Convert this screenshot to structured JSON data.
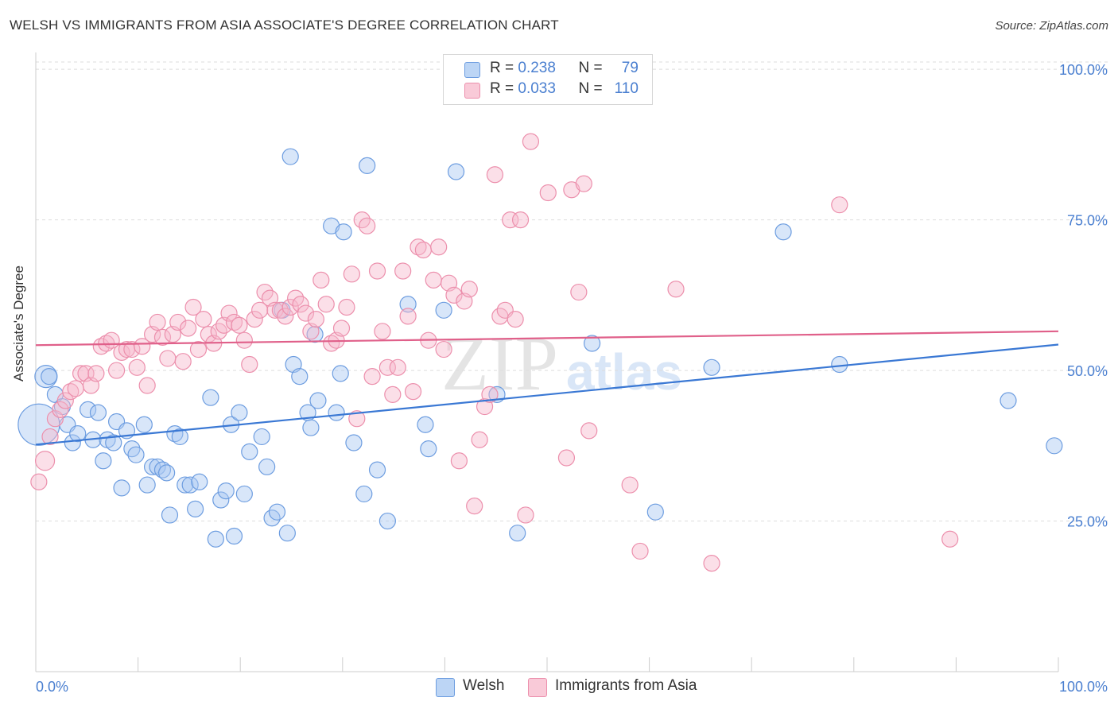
{
  "title": "WELSH VS IMMIGRANTS FROM ASIA ASSOCIATE'S DEGREE CORRELATION CHART",
  "source": "Source: ZipAtlas.com",
  "watermark": {
    "zip": "ZIP",
    "atlas": "atlas"
  },
  "colors": {
    "welsh_fill": "#a9c8f2",
    "welsh_stroke": "#6d9de0",
    "welsh_line": "#3a78d4",
    "asia_fill": "#f7b9cb",
    "asia_stroke": "#ec8fac",
    "asia_line": "#e0608a",
    "grid": "#dddddd",
    "tick_label": "#4a7fd0"
  },
  "legend": {
    "r_label": "R =",
    "n_label": "N =",
    "welsh": {
      "r": "0.238",
      "n": "79"
    },
    "asia": {
      "r": "0.033",
      "n": "110"
    }
  },
  "bottom_legend": {
    "welsh": "Welsh",
    "asia": "Immigrants from Asia"
  },
  "chart_data": {
    "type": "scatter",
    "title": "WELSH VS IMMIGRANTS FROM ASIA ASSOCIATE'S DEGREE CORRELATION CHART",
    "xlabel": "",
    "ylabel": "Associate's Degree",
    "xlim": [
      0,
      100
    ],
    "ylim": [
      0,
      102
    ],
    "x_tick_labels": [
      "0.0%",
      "100.0%"
    ],
    "y_ticks": [
      25,
      50,
      75,
      100
    ],
    "y_tick_labels": [
      "25.0%",
      "50.0%",
      "75.0%",
      "100.0%"
    ],
    "grid": true,
    "legend_position": "top-center",
    "series": [
      {
        "name": "Welsh",
        "r": 0.238,
        "n": 79,
        "trend": [
          [
            0,
            37.7
          ],
          [
            100,
            54.3
          ]
        ],
        "points": [
          [
            0.3,
            41,
            26
          ],
          [
            1.0,
            49,
            14
          ],
          [
            1.3,
            49,
            10
          ],
          [
            1.9,
            46,
            10
          ],
          [
            2.6,
            44,
            10
          ],
          [
            3.1,
            41,
            10
          ],
          [
            3.6,
            38,
            10
          ],
          [
            4.1,
            39.5,
            10
          ],
          [
            5.1,
            43.5,
            10
          ],
          [
            5.6,
            38.5,
            10
          ],
          [
            6.1,
            43,
            10
          ],
          [
            6.6,
            35,
            10
          ],
          [
            7.0,
            38.5,
            10
          ],
          [
            7.6,
            38,
            10
          ],
          [
            7.9,
            41.5,
            10
          ],
          [
            8.4,
            30.5,
            10
          ],
          [
            8.9,
            40,
            10
          ],
          [
            9.4,
            37,
            10
          ],
          [
            9.8,
            36,
            10
          ],
          [
            10.6,
            41,
            10
          ],
          [
            10.9,
            31,
            10
          ],
          [
            11.4,
            34,
            10
          ],
          [
            11.9,
            34,
            10
          ],
          [
            12.4,
            33.5,
            10
          ],
          [
            12.8,
            33,
            10
          ],
          [
            13.1,
            26,
            10
          ],
          [
            13.6,
            39.5,
            10
          ],
          [
            14.1,
            39,
            10
          ],
          [
            14.6,
            31,
            10
          ],
          [
            15.1,
            31,
            10
          ],
          [
            15.6,
            27,
            10
          ],
          [
            16.0,
            31.5,
            10
          ],
          [
            17.1,
            45.5,
            10
          ],
          [
            17.6,
            22,
            10
          ],
          [
            18.1,
            28.5,
            10
          ],
          [
            18.6,
            30,
            10
          ],
          [
            19.1,
            41,
            10
          ],
          [
            19.4,
            22.5,
            10
          ],
          [
            19.9,
            43,
            10
          ],
          [
            20.4,
            29.5,
            10
          ],
          [
            20.9,
            36.5,
            10
          ],
          [
            22.1,
            39,
            10
          ],
          [
            22.6,
            34,
            10
          ],
          [
            23.1,
            25.5,
            10
          ],
          [
            23.6,
            26.5,
            10
          ],
          [
            24.1,
            60,
            10
          ],
          [
            24.6,
            23,
            10
          ],
          [
            24.9,
            85.5,
            10
          ],
          [
            25.2,
            51,
            10
          ],
          [
            25.8,
            49,
            10
          ],
          [
            26.6,
            43,
            10
          ],
          [
            26.9,
            40.5,
            10
          ],
          [
            27.3,
            56,
            10
          ],
          [
            27.6,
            45,
            10
          ],
          [
            28.9,
            74,
            10
          ],
          [
            29.4,
            43,
            10
          ],
          [
            29.8,
            49.5,
            10
          ],
          [
            30.1,
            73,
            10
          ],
          [
            31.1,
            38,
            10
          ],
          [
            32.1,
            29.5,
            10
          ],
          [
            32.4,
            84,
            10
          ],
          [
            33.4,
            33.5,
            10
          ],
          [
            34.4,
            25,
            10
          ],
          [
            36.4,
            61,
            10
          ],
          [
            38.1,
            41,
            10
          ],
          [
            38.4,
            37,
            10
          ],
          [
            39.9,
            60,
            10
          ],
          [
            41.1,
            83,
            10
          ],
          [
            45.1,
            46,
            10
          ],
          [
            47.1,
            23,
            10
          ],
          [
            54.4,
            54.5,
            10
          ],
          [
            60.6,
            26.5,
            10
          ],
          [
            66.1,
            50.5,
            10
          ],
          [
            73.1,
            73,
            10
          ],
          [
            78.6,
            51,
            10
          ],
          [
            95.1,
            45,
            10
          ],
          [
            99.6,
            37.5,
            10
          ]
        ]
      },
      {
        "name": "Immigrants from Asia",
        "r": 0.033,
        "n": 110,
        "trend": [
          [
            0,
            54.2
          ],
          [
            100,
            56.5
          ]
        ],
        "points": [
          [
            0.3,
            31.5,
            10
          ],
          [
            0.9,
            35,
            12
          ],
          [
            1.4,
            39,
            10
          ],
          [
            1.9,
            42,
            10
          ],
          [
            2.4,
            43.5,
            10
          ],
          [
            2.9,
            45,
            10
          ],
          [
            3.4,
            46.5,
            10
          ],
          [
            3.9,
            47,
            10
          ],
          [
            4.4,
            49.5,
            10
          ],
          [
            4.9,
            49.5,
            10
          ],
          [
            5.4,
            47.5,
            10
          ],
          [
            5.9,
            49.5,
            10
          ],
          [
            6.4,
            54,
            10
          ],
          [
            6.9,
            54.5,
            10
          ],
          [
            7.4,
            55,
            10
          ],
          [
            7.9,
            50,
            10
          ],
          [
            8.4,
            53,
            10
          ],
          [
            8.9,
            53.5,
            10
          ],
          [
            9.4,
            53.5,
            10
          ],
          [
            9.9,
            50.5,
            10
          ],
          [
            10.4,
            54,
            10
          ],
          [
            10.9,
            47.5,
            10
          ],
          [
            11.4,
            56,
            10
          ],
          [
            11.9,
            58,
            10
          ],
          [
            12.4,
            55.5,
            10
          ],
          [
            12.9,
            52,
            10
          ],
          [
            13.4,
            56,
            10
          ],
          [
            13.9,
            58,
            10
          ],
          [
            14.4,
            51.5,
            10
          ],
          [
            14.9,
            57,
            10
          ],
          [
            15.4,
            60.5,
            10
          ],
          [
            15.9,
            53.5,
            10
          ],
          [
            16.4,
            58.5,
            10
          ],
          [
            16.9,
            56,
            10
          ],
          [
            17.4,
            54.5,
            10
          ],
          [
            17.9,
            56.5,
            10
          ],
          [
            18.4,
            57.5,
            10
          ],
          [
            18.9,
            59.5,
            10
          ],
          [
            19.4,
            58,
            10
          ],
          [
            19.9,
            57.5,
            10
          ],
          [
            20.4,
            55,
            10
          ],
          [
            20.9,
            51,
            10
          ],
          [
            21.4,
            58.5,
            10
          ],
          [
            21.9,
            60,
            10
          ],
          [
            22.4,
            63,
            10
          ],
          [
            22.9,
            62,
            10
          ],
          [
            23.4,
            60,
            10
          ],
          [
            23.9,
            60,
            10
          ],
          [
            24.4,
            59,
            10
          ],
          [
            24.9,
            60.5,
            10
          ],
          [
            25.4,
            62,
            10
          ],
          [
            25.9,
            61,
            10
          ],
          [
            26.4,
            59.5,
            10
          ],
          [
            26.9,
            56.5,
            10
          ],
          [
            27.4,
            58.5,
            10
          ],
          [
            27.9,
            65,
            10
          ],
          [
            28.4,
            61,
            10
          ],
          [
            28.9,
            54.5,
            10
          ],
          [
            29.4,
            55,
            10
          ],
          [
            29.9,
            57,
            10
          ],
          [
            30.4,
            60.5,
            10
          ],
          [
            30.9,
            66,
            10
          ],
          [
            31.4,
            42,
            10
          ],
          [
            31.9,
            75,
            10
          ],
          [
            32.4,
            74,
            10
          ],
          [
            32.9,
            49,
            10
          ],
          [
            33.4,
            66.5,
            10
          ],
          [
            33.9,
            56.5,
            10
          ],
          [
            34.4,
            50.5,
            10
          ],
          [
            34.9,
            46,
            10
          ],
          [
            35.4,
            50.5,
            10
          ],
          [
            35.9,
            66.5,
            10
          ],
          [
            36.4,
            59,
            10
          ],
          [
            36.9,
            46.5,
            10
          ],
          [
            37.4,
            70.5,
            10
          ],
          [
            37.9,
            70,
            10
          ],
          [
            38.4,
            55,
            10
          ],
          [
            38.9,
            65,
            10
          ],
          [
            39.4,
            70.5,
            10
          ],
          [
            39.9,
            53.5,
            10
          ],
          [
            40.4,
            64.5,
            10
          ],
          [
            40.9,
            62.5,
            10
          ],
          [
            41.4,
            35,
            10
          ],
          [
            41.9,
            61.5,
            10
          ],
          [
            42.4,
            63.5,
            10
          ],
          [
            42.9,
            27.5,
            10
          ],
          [
            43.4,
            38.5,
            10
          ],
          [
            43.9,
            44,
            10
          ],
          [
            44.4,
            46,
            10
          ],
          [
            44.9,
            82.5,
            10
          ],
          [
            45.4,
            59,
            10
          ],
          [
            45.9,
            60,
            10
          ],
          [
            46.4,
            75,
            10
          ],
          [
            46.9,
            58.5,
            10
          ],
          [
            47.4,
            75,
            10
          ],
          [
            47.9,
            26,
            10
          ],
          [
            48.4,
            88,
            10
          ],
          [
            50.1,
            79.5,
            10
          ],
          [
            51.9,
            35.5,
            10
          ],
          [
            52.4,
            80,
            10
          ],
          [
            53.1,
            63,
            10
          ],
          [
            53.6,
            81,
            10
          ],
          [
            54.1,
            40,
            10
          ],
          [
            58.1,
            31,
            10
          ],
          [
            59.1,
            20,
            10
          ],
          [
            62.6,
            63.5,
            10
          ],
          [
            66.1,
            18,
            10
          ],
          [
            78.6,
            77.5,
            10
          ],
          [
            89.4,
            22,
            10
          ]
        ]
      }
    ]
  }
}
